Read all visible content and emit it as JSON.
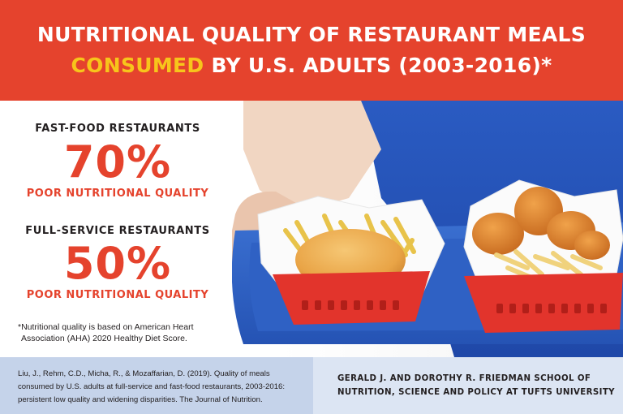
{
  "header": {
    "line1": "NUTRITIONAL QUALITY OF RESTAURANT MEALS",
    "line2_highlight": "CONSUMED",
    "line2_rest": "BY U.S. ADULTS (2003-2016)*"
  },
  "stats": [
    {
      "label": "FAST-FOOD RESTAURANTS",
      "value": "70%",
      "sub": "POOR NUTRITIONAL QUALITY"
    },
    {
      "label": "FULL-SERVICE RESTAURANTS",
      "value": "50%",
      "sub": "POOR NUTRITIONAL QUALITY"
    }
  ],
  "footnote": {
    "line1": "*Nutritional quality is based on American Heart",
    "line2": "Association (AHA) 2020 Healthy Diet Score."
  },
  "citation": {
    "line1": "Liu, J., Rehm, C.D., Micha, R., & Mozaffarian, D. (2019). Quality of meals",
    "line2": "consumed by U.S. adults at full-service and fast-food restaurants, 2003-2016:",
    "line3": "persistent low quality and widening disparities. The Journal of Nutrition."
  },
  "institution": {
    "line1": "GERALD J. AND DOROTHY R. FRIEDMAN SCHOOL OF",
    "line2": "NUTRITION, SCIENCE AND POLICY AT TUFTS UNIVERSITY"
  },
  "colors": {
    "brand_red": "#e5432d",
    "highlight_yellow": "#f7c51b",
    "footer_left_bg": "#c5d3ea",
    "footer_right_bg": "#dce5f3",
    "apron_blue": "#2a54b8",
    "tray_blue": "#3363c4",
    "basket_red": "#e2342c"
  }
}
